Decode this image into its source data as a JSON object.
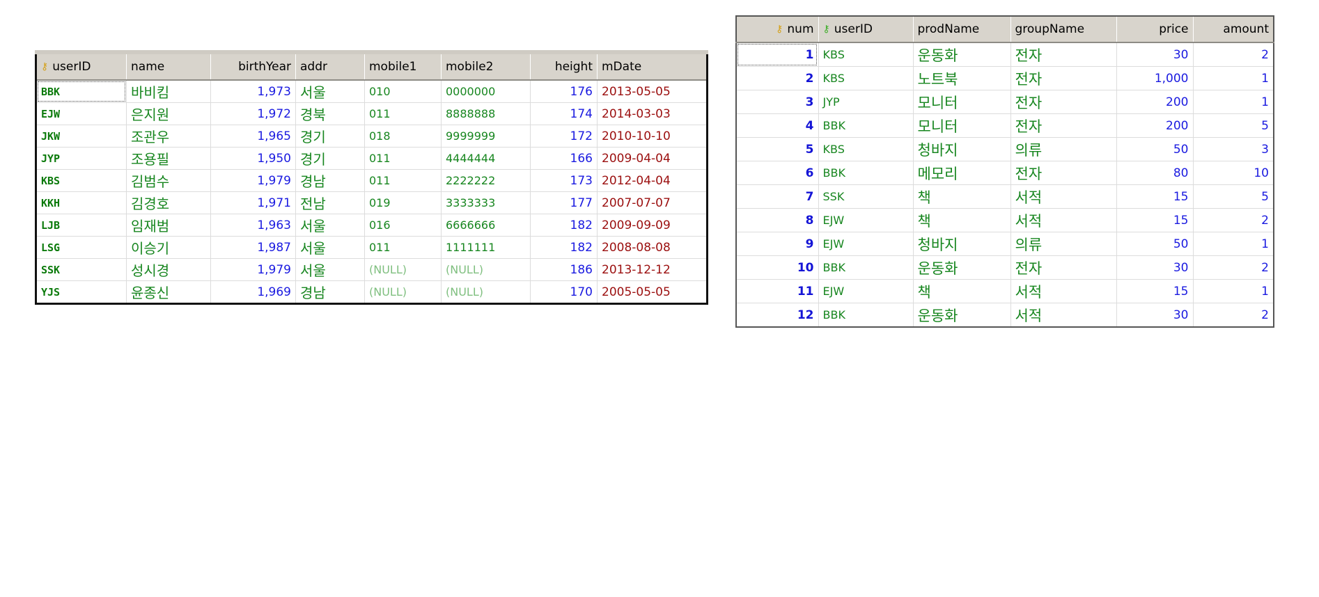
{
  "users_table": {
    "columns": [
      "userID",
      "name",
      "birthYear",
      "addr",
      "mobile1",
      "mobile2",
      "height",
      "mDate"
    ],
    "rows": [
      {
        "userID": "BBK",
        "name": "바비킴",
        "birthYear": "1,973",
        "addr": "서울",
        "mobile1": "010",
        "mobile2": "0000000",
        "height": "176",
        "mDate": "2013-05-05"
      },
      {
        "userID": "EJW",
        "name": "은지원",
        "birthYear": "1,972",
        "addr": "경북",
        "mobile1": "011",
        "mobile2": "8888888",
        "height": "174",
        "mDate": "2014-03-03"
      },
      {
        "userID": "JKW",
        "name": "조관우",
        "birthYear": "1,965",
        "addr": "경기",
        "mobile1": "018",
        "mobile2": "9999999",
        "height": "172",
        "mDate": "2010-10-10"
      },
      {
        "userID": "JYP",
        "name": "조용필",
        "birthYear": "1,950",
        "addr": "경기",
        "mobile1": "011",
        "mobile2": "4444444",
        "height": "166",
        "mDate": "2009-04-04"
      },
      {
        "userID": "KBS",
        "name": "김범수",
        "birthYear": "1,979",
        "addr": "경남",
        "mobile1": "011",
        "mobile2": "2222222",
        "height": "173",
        "mDate": "2012-04-04"
      },
      {
        "userID": "KKH",
        "name": "김경호",
        "birthYear": "1,971",
        "addr": "전남",
        "mobile1": "019",
        "mobile2": "3333333",
        "height": "177",
        "mDate": "2007-07-07"
      },
      {
        "userID": "LJB",
        "name": "임재범",
        "birthYear": "1,963",
        "addr": "서울",
        "mobile1": "016",
        "mobile2": "6666666",
        "height": "182",
        "mDate": "2009-09-09"
      },
      {
        "userID": "LSG",
        "name": "이승기",
        "birthYear": "1,987",
        "addr": "서울",
        "mobile1": "011",
        "mobile2": "1111111",
        "height": "182",
        "mDate": "2008-08-08"
      },
      {
        "userID": "SSK",
        "name": "성시경",
        "birthYear": "1,979",
        "addr": "서울",
        "mobile1": "(NULL)",
        "mobile2": "(NULL)",
        "height": "186",
        "mDate": "2013-12-12"
      },
      {
        "userID": "YJS",
        "name": "윤종신",
        "birthYear": "1,969",
        "addr": "경남",
        "mobile1": "(NULL)",
        "mobile2": "(NULL)",
        "height": "170",
        "mDate": "2005-05-05"
      }
    ]
  },
  "buy_table": {
    "columns": [
      "num",
      "userID",
      "prodName",
      "groupName",
      "price",
      "amount"
    ],
    "rows": [
      {
        "num": "1",
        "userID": "KBS",
        "prodName": "운동화",
        "groupName": "전자",
        "price": "30",
        "amount": "2"
      },
      {
        "num": "2",
        "userID": "KBS",
        "prodName": "노트북",
        "groupName": "전자",
        "price": "1,000",
        "amount": "1"
      },
      {
        "num": "3",
        "userID": "JYP",
        "prodName": "모니터",
        "groupName": "전자",
        "price": "200",
        "amount": "1"
      },
      {
        "num": "4",
        "userID": "BBK",
        "prodName": "모니터",
        "groupName": "전자",
        "price": "200",
        "amount": "5"
      },
      {
        "num": "5",
        "userID": "KBS",
        "prodName": "청바지",
        "groupName": "의류",
        "price": "50",
        "amount": "3"
      },
      {
        "num": "6",
        "userID": "BBK",
        "prodName": "메모리",
        "groupName": "전자",
        "price": "80",
        "amount": "10"
      },
      {
        "num": "7",
        "userID": "SSK",
        "prodName": "책",
        "groupName": "서적",
        "price": "15",
        "amount": "5"
      },
      {
        "num": "8",
        "userID": "EJW",
        "prodName": "책",
        "groupName": "서적",
        "price": "15",
        "amount": "2"
      },
      {
        "num": "9",
        "userID": "EJW",
        "prodName": "청바지",
        "groupName": "의류",
        "price": "50",
        "amount": "1"
      },
      {
        "num": "10",
        "userID": "BBK",
        "prodName": "운동화",
        "groupName": "전자",
        "price": "30",
        "amount": "2"
      },
      {
        "num": "11",
        "userID": "EJW",
        "prodName": "책",
        "groupName": "서적",
        "price": "15",
        "amount": "1"
      },
      {
        "num": "12",
        "userID": "BBK",
        "prodName": "운동화",
        "groupName": "서적",
        "price": "30",
        "amount": "2"
      }
    ]
  },
  "icons": {
    "primary_key": "key-icon",
    "foreign_key": "foreign-key-icon"
  },
  "colors": {
    "id_text": "#0b7a0b",
    "korean_text": "#17861f",
    "number_text": "#1a1ae0",
    "date_text": "#9b0f0f",
    "null_text": "#7fbf7f",
    "header_bg": "#d8d4cc"
  }
}
